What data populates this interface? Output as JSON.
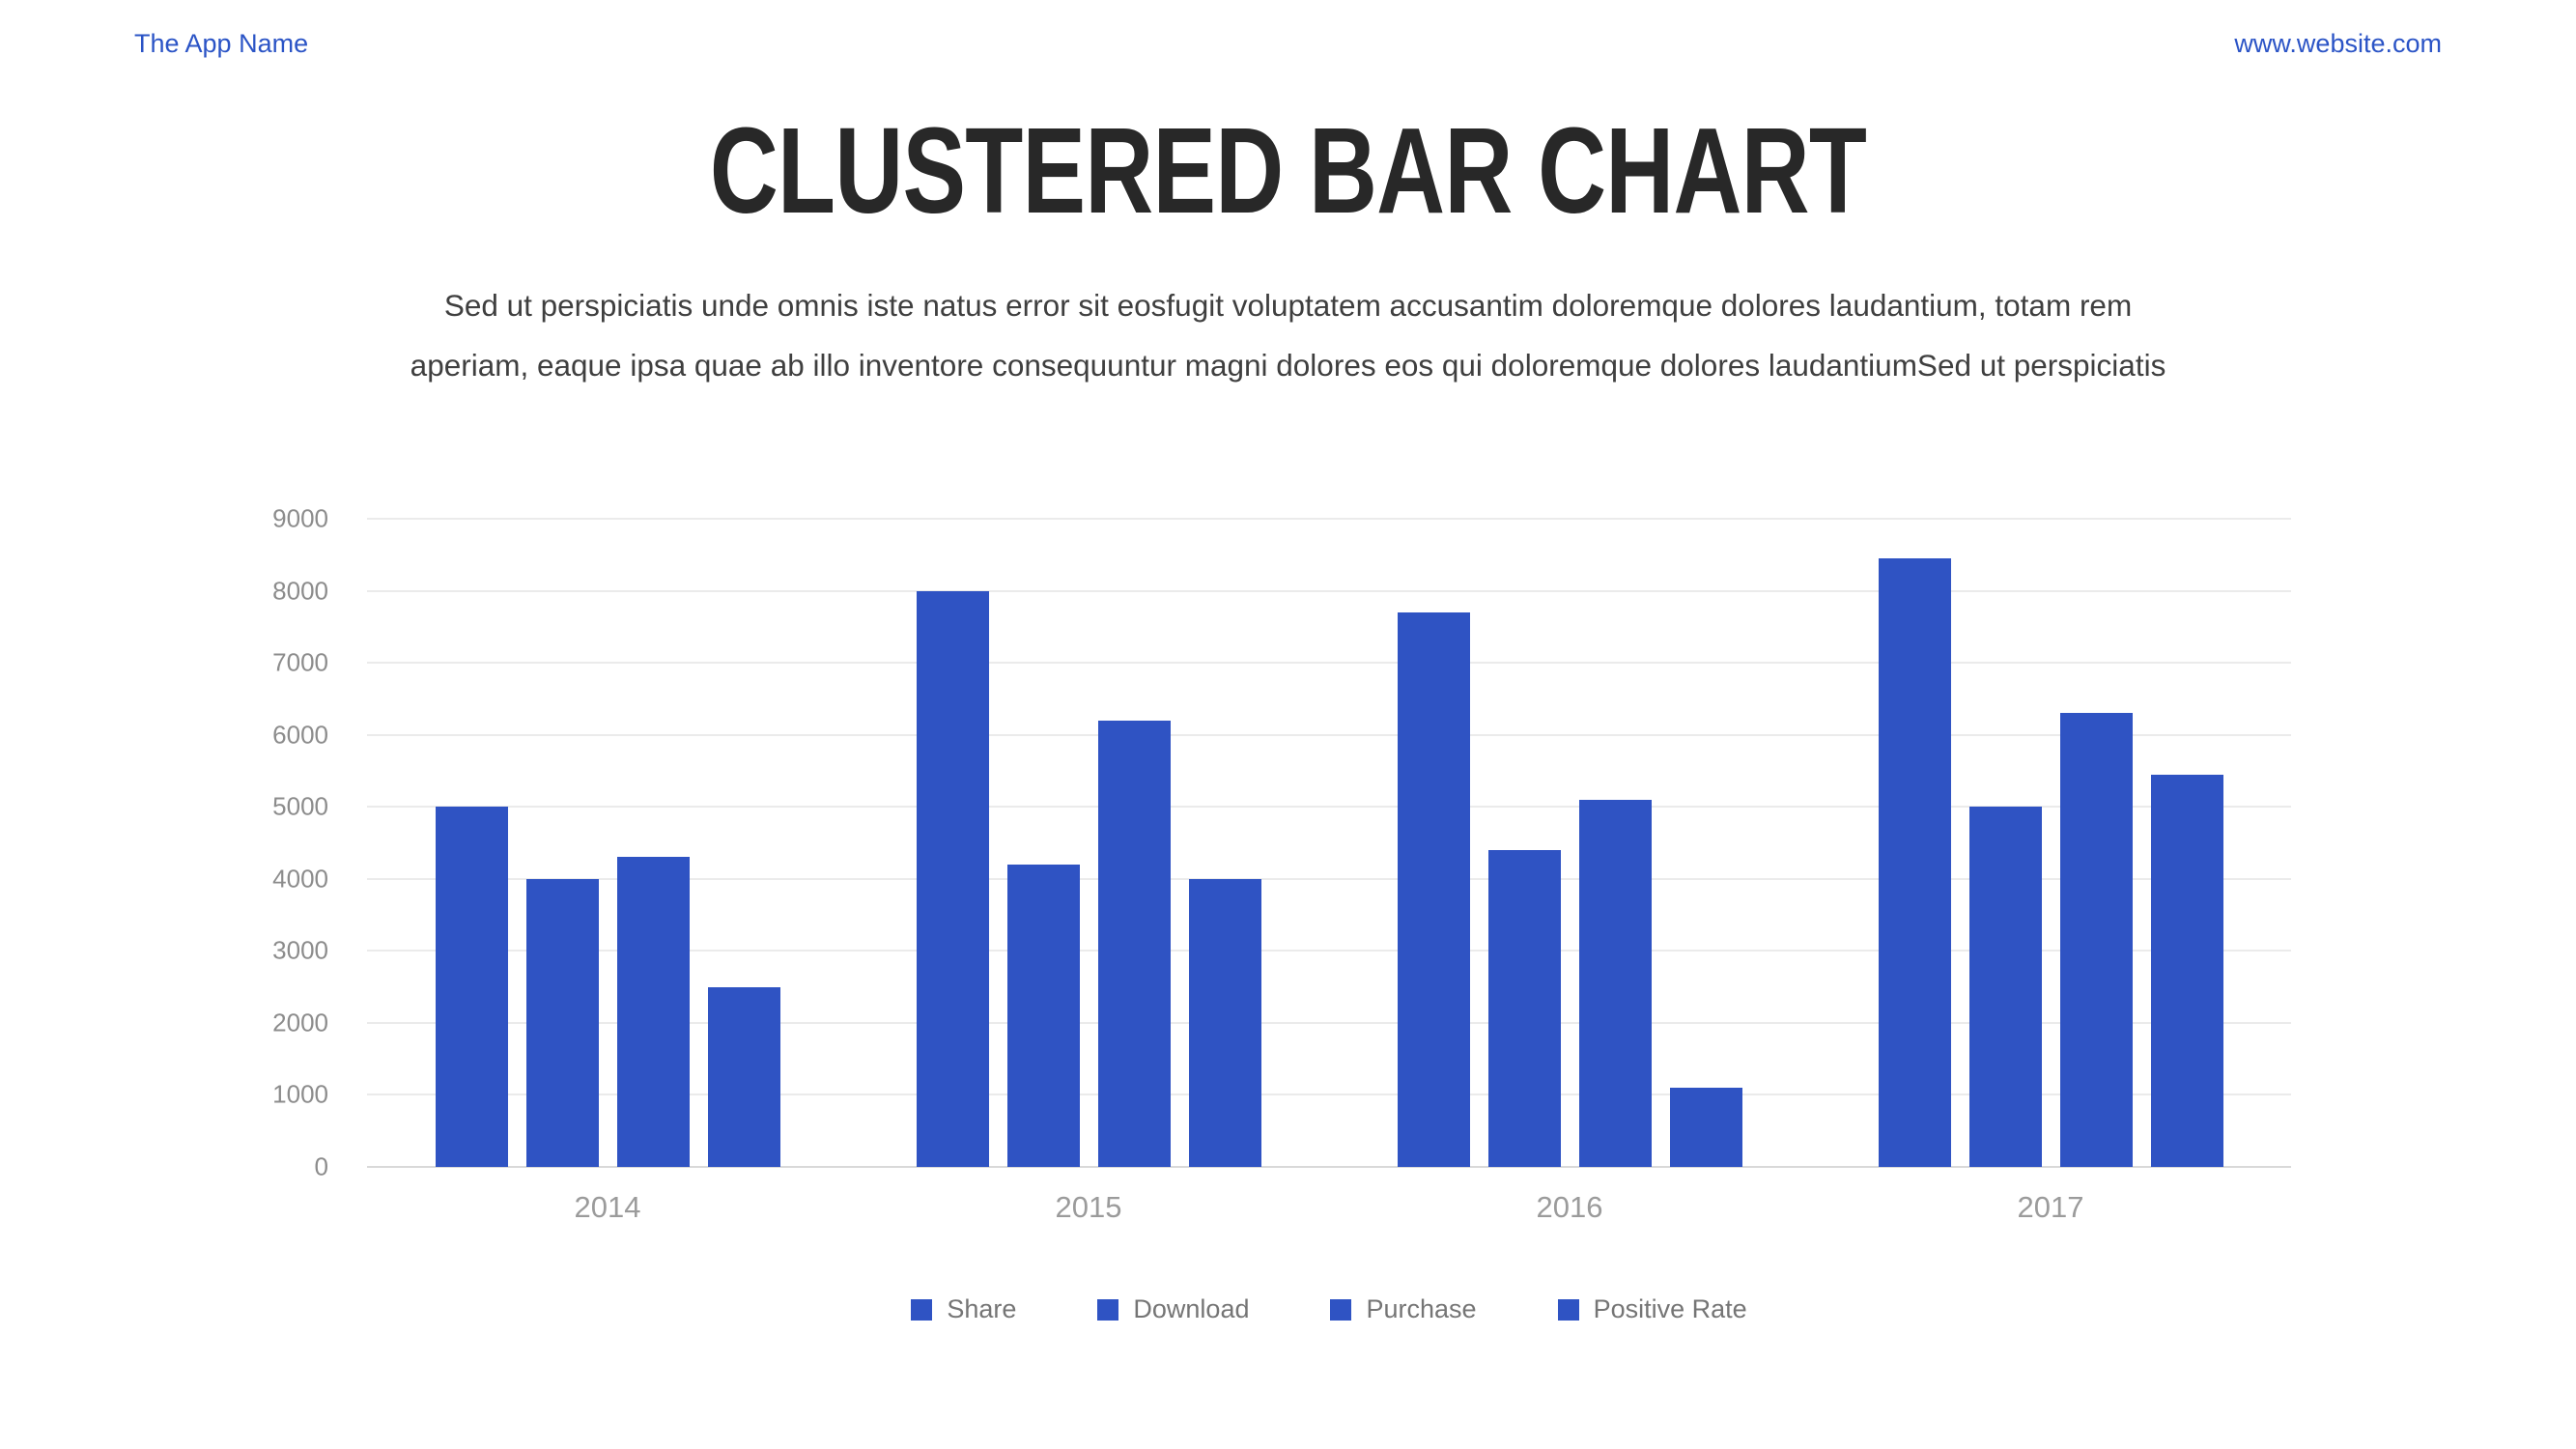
{
  "header": {
    "app_name": "The App Name",
    "website": "www.website.com"
  },
  "title": "CLUSTERED BAR CHART",
  "subtitle": {
    "line1": "Sed ut perspiciatis unde omnis iste natus error sit eosfugit voluptatem accusantim doloremque dolores laudantium, totam rem",
    "line2": "aperiam, eaque ipsa quae ab illo inventore consequuntur magni dolores eos qui doloremque dolores laudantiumSed ut perspiciatis"
  },
  "colors": {
    "accent_blue": "#2f53c3",
    "link_blue": "#2b54c6",
    "title_text": "#282828",
    "body_text": "#3f3f3f",
    "axis_label_gray": "#8c8c8c",
    "legend_gray": "#757575",
    "gridline_gray": "#ebebeb"
  },
  "chart_data": {
    "type": "bar",
    "title": "",
    "xlabel": "",
    "ylabel": "",
    "categories": [
      "2014",
      "2015",
      "2016",
      "2017"
    ],
    "series": [
      {
        "name": "Share",
        "values": [
          5000,
          8000,
          7700,
          8450
        ]
      },
      {
        "name": "Download",
        "values": [
          4000,
          4200,
          4400,
          5000
        ]
      },
      {
        "name": "Purchase",
        "values": [
          4300,
          6200,
          5100,
          6300
        ]
      },
      {
        "name": "Positive Rate",
        "values": [
          2500,
          4000,
          1100,
          5450
        ]
      }
    ],
    "ylim": [
      0,
      9000
    ],
    "ytick_step": 1000,
    "grid": true,
    "legend_position": "bottom",
    "bar_color": "#2f53c3"
  }
}
